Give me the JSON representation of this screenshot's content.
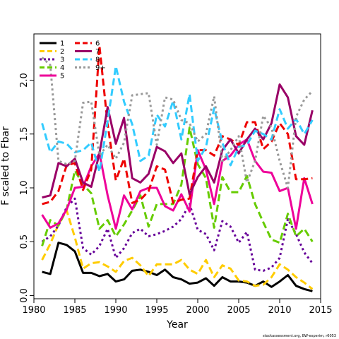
{
  "chart_data": {
    "type": "line",
    "title": "",
    "xlabel": "Year",
    "ylabel": "F scaled to Fbar",
    "xlim": [
      1980,
      2015
    ],
    "ylim": [
      -0.03,
      2.43
    ],
    "xticks": [
      1980,
      1985,
      1990,
      1995,
      2000,
      2005,
      2010,
      2015
    ],
    "yticks": [
      0.0,
      0.5,
      1.0,
      1.5,
      2.0
    ],
    "ytick_labels": [
      "0.0",
      "0.5",
      "1.0",
      "1.5",
      "2.0"
    ],
    "grid": false,
    "legend_position": "top-left",
    "footnote": "stockassessment.org, BW-experim, r6053",
    "x": [
      1981,
      1982,
      1983,
      1984,
      1985,
      1986,
      1987,
      1988,
      1989,
      1990,
      1991,
      1992,
      1993,
      1994,
      1995,
      1996,
      1997,
      1998,
      1999,
      2000,
      2001,
      2002,
      2003,
      2004,
      2005,
      2006,
      2007,
      2008,
      2009,
      2010,
      2011,
      2012,
      2013,
      2014
    ],
    "series": [
      {
        "name": "1",
        "color": "#000000",
        "dash": "solid",
        "values": [
          0.22,
          0.2,
          0.49,
          0.47,
          0.41,
          0.21,
          0.21,
          0.18,
          0.2,
          0.13,
          0.15,
          0.23,
          0.24,
          0.22,
          0.19,
          0.24,
          0.17,
          0.15,
          0.11,
          0.12,
          0.16,
          0.09,
          0.17,
          0.13,
          0.13,
          0.12,
          0.09,
          0.13,
          0.08,
          0.13,
          0.19,
          0.09,
          0.06,
          0.04
        ]
      },
      {
        "name": "2",
        "color": "#FFCC00",
        "dash": "long",
        "values": [
          0.33,
          0.48,
          0.66,
          0.79,
          0.54,
          0.25,
          0.3,
          0.31,
          0.27,
          0.22,
          0.32,
          0.35,
          0.28,
          0.18,
          0.29,
          0.29,
          0.29,
          0.33,
          0.24,
          0.2,
          0.33,
          0.17,
          0.28,
          0.25,
          0.14,
          0.13,
          0.09,
          0.1,
          0.17,
          0.29,
          0.24,
          0.17,
          0.12,
          0.06
        ]
      },
      {
        "name": "3",
        "color": "#660099",
        "dash": "dot",
        "values": [
          0.5,
          0.55,
          0.65,
          0.82,
          0.9,
          0.44,
          0.38,
          0.46,
          0.62,
          0.35,
          0.44,
          0.58,
          0.62,
          0.55,
          0.57,
          0.6,
          0.64,
          0.71,
          0.85,
          0.61,
          0.57,
          0.42,
          0.69,
          0.64,
          0.49,
          0.59,
          0.24,
          0.23,
          0.26,
          0.35,
          0.71,
          0.57,
          0.4,
          0.3
        ]
      },
      {
        "name": "4",
        "color": "#66CC00",
        "dash": "long",
        "values": [
          0.46,
          0.7,
          0.65,
          0.8,
          1.16,
          1.03,
          0.95,
          0.62,
          0.7,
          0.55,
          0.66,
          0.79,
          0.93,
          0.64,
          0.85,
          0.85,
          0.85,
          1.03,
          1.56,
          1.22,
          1.09,
          0.63,
          1.1,
          0.96,
          0.96,
          1.11,
          0.85,
          0.68,
          0.52,
          0.49,
          0.76,
          0.55,
          0.62,
          0.5
        ]
      },
      {
        "name": "5",
        "color": "#EE0099",
        "dash": "solid",
        "values": [
          0.75,
          0.63,
          0.67,
          0.8,
          1.0,
          1.01,
          1.2,
          1.32,
          0.93,
          0.62,
          0.93,
          0.8,
          0.97,
          1.0,
          1.0,
          0.83,
          0.79,
          0.94,
          0.78,
          1.35,
          1.17,
          0.85,
          1.25,
          1.3,
          1.4,
          1.45,
          1.25,
          1.15,
          1.14,
          0.97,
          1.0,
          0.62,
          1.09,
          0.85
        ]
      },
      {
        "name": "6",
        "color": "#EE0000",
        "dash": "long",
        "values": [
          0.85,
          0.87,
          0.97,
          1.21,
          1.23,
          0.98,
          1.17,
          2.32,
          1.59,
          1.07,
          1.27,
          0.86,
          0.89,
          0.97,
          1.2,
          1.17,
          0.86,
          0.89,
          0.9,
          1.35,
          1.35,
          1.3,
          1.48,
          1.45,
          1.4,
          1.61,
          1.61,
          1.36,
          1.43,
          1.6,
          1.5,
          1.08,
          1.08,
          1.09
        ]
      },
      {
        "name": "7",
        "color": "#990066",
        "dash": "solid",
        "values": [
          0.91,
          0.93,
          1.23,
          1.2,
          1.27,
          1.05,
          1.01,
          1.32,
          1.75,
          1.41,
          1.65,
          1.09,
          1.05,
          1.13,
          1.38,
          1.34,
          1.23,
          1.32,
          0.94,
          1.1,
          1.2,
          1.05,
          1.35,
          1.45,
          1.32,
          1.45,
          1.55,
          1.45,
          1.6,
          1.96,
          1.84,
          1.48,
          1.4,
          1.72
        ]
      },
      {
        "name": "8",
        "color": "#33CCFF",
        "dash": "long",
        "values": [
          1.6,
          1.33,
          1.43,
          1.41,
          1.33,
          1.35,
          1.42,
          1.15,
          1.62,
          2.13,
          1.8,
          1.59,
          1.25,
          1.3,
          1.68,
          1.57,
          1.81,
          1.45,
          1.87,
          1.25,
          1.38,
          1.74,
          1.42,
          1.21,
          1.38,
          1.4,
          1.53,
          1.5,
          1.45,
          1.73,
          1.55,
          1.64,
          1.5,
          1.63
        ]
      },
      {
        "name": "9+",
        "color": "#999999",
        "dash": "dot",
        "values": [
          2.21,
          2.14,
          1.25,
          1.22,
          1.25,
          1.79,
          1.8,
          1.3,
          1.4,
          1.27,
          1.42,
          1.86,
          1.87,
          1.88,
          1.4,
          1.84,
          1.82,
          1.63,
          1.6,
          1.43,
          1.5,
          1.85,
          1.25,
          1.35,
          1.48,
          1.05,
          1.25,
          1.67,
          1.56,
          1.25,
          1.0,
          1.66,
          1.82,
          1.9
        ]
      }
    ]
  }
}
